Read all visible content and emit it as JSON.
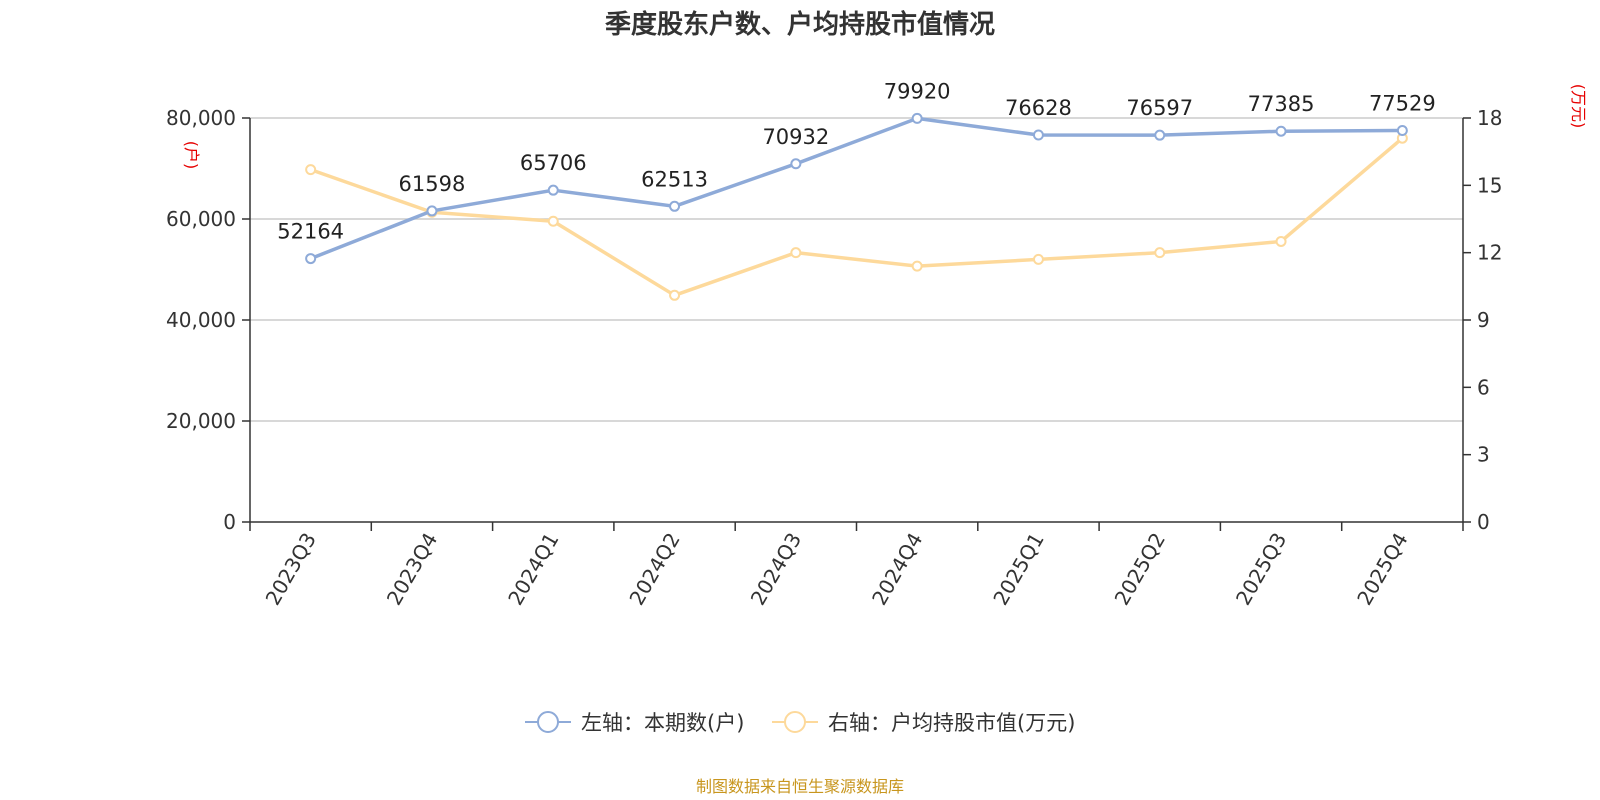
{
  "chart_data": {
    "type": "line",
    "title": "季度股东户数、户均持股市值情况",
    "categories": [
      "2023Q3",
      "2023Q4",
      "2024Q1",
      "2024Q2",
      "2024Q3",
      "2024Q4",
      "2025Q1",
      "2025Q2",
      "2025Q3",
      "2025Q4"
    ],
    "series": [
      {
        "name": "左轴：本期数(户)",
        "axis": "left",
        "color": "#8eaad8",
        "values": [
          52164,
          61598,
          65706,
          62513,
          70932,
          79920,
          76628,
          76597,
          77385,
          77529
        ],
        "labels": [
          "52164",
          "61598",
          "65706",
          "62513",
          "70932",
          "79920",
          "76628",
          "76597",
          "77385",
          "77529"
        ]
      },
      {
        "name": "右轴：户均持股市值(万元)",
        "axis": "right",
        "color": "#fdd99b",
        "values": [
          15.7,
          13.8,
          13.4,
          10.1,
          12.0,
          11.4,
          11.7,
          12.0,
          12.5,
          17.1
        ]
      }
    ],
    "left_axis": {
      "unit": "(户)",
      "ylim": [
        0,
        80000
      ],
      "ticks": [
        0,
        20000,
        40000,
        60000,
        80000
      ],
      "tick_labels": [
        "0",
        "20,000",
        "40,000",
        "60,000",
        "80,000"
      ]
    },
    "right_axis": {
      "unit": "(万元)",
      "ylim": [
        0,
        18
      ],
      "ticks": [
        0,
        3,
        6,
        9,
        12,
        15,
        18
      ],
      "tick_labels": [
        "0",
        "3",
        "6",
        "9",
        "12",
        "15",
        "18"
      ]
    },
    "grid": true,
    "grid_color": "#cccccc",
    "legend_position": "bottom",
    "source": "制图数据来自恒生聚源数据库",
    "source_color": "#c8961e",
    "unit_color": "#e60000"
  }
}
